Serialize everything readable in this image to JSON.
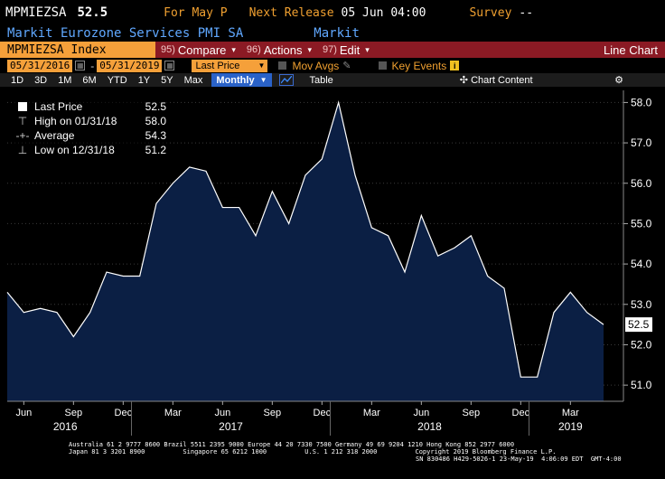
{
  "header": {
    "ticker": "MPMIEZSA",
    "last": "52.5",
    "for_period": "For May P",
    "next_release_label": "Next Release",
    "next_release_value": "05 Jun 04:00",
    "survey_label": "Survey",
    "survey_value": "--",
    "description": "Markit Eurozone Services PMI SA",
    "source": "Markit"
  },
  "toolbar": {
    "index_label": "MPMIEZSA Index",
    "buttons": [
      {
        "num": "95)",
        "label": "Compare",
        "caret": "▾"
      },
      {
        "num": "96)",
        "label": "Actions",
        "caret": "▾"
      },
      {
        "num": "97)",
        "label": "Edit",
        "caret": "▾"
      }
    ],
    "title": "Line Chart"
  },
  "range": {
    "start": "05/31/2016",
    "end": "05/31/2019",
    "dash": "-",
    "field": "Last Price",
    "mov_avgs": "Mov Avgs",
    "key_events": "Key Events",
    "info": "i"
  },
  "periods": {
    "items": [
      "1D",
      "3D",
      "1M",
      "6M",
      "YTD",
      "1Y",
      "5Y",
      "Max"
    ],
    "frequency": "Monthly",
    "table": "Table",
    "chart_content": "Chart Content"
  },
  "legend": [
    {
      "label": "Last Price",
      "value": "52.5"
    },
    {
      "label": "High on 01/31/18",
      "value": "58.0"
    },
    {
      "label": "Average",
      "value": "54.3"
    },
    {
      "label": "Low on 12/31/18",
      "value": "51.2"
    }
  ],
  "colors": {
    "fill": "#0b1f44",
    "line": "#ffffff",
    "orange": "#f5a03a",
    "red": "#8b1a24",
    "blue_text": "#60a8ff"
  },
  "chart_data": {
    "type": "area",
    "x": [
      "2016-05",
      "2016-06",
      "2016-07",
      "2016-08",
      "2016-09",
      "2016-10",
      "2016-11",
      "2016-12",
      "2017-01",
      "2017-02",
      "2017-03",
      "2017-04",
      "2017-05",
      "2017-06",
      "2017-07",
      "2017-08",
      "2017-09",
      "2017-10",
      "2017-11",
      "2017-12",
      "2018-01",
      "2018-02",
      "2018-03",
      "2018-04",
      "2018-05",
      "2018-06",
      "2018-07",
      "2018-08",
      "2018-09",
      "2018-10",
      "2018-11",
      "2018-12",
      "2019-01",
      "2019-02",
      "2019-03",
      "2019-04",
      "2019-05"
    ],
    "values": [
      53.3,
      52.8,
      52.9,
      52.8,
      52.2,
      52.8,
      53.8,
      53.7,
      53.7,
      55.5,
      56.0,
      56.4,
      56.3,
      55.4,
      55.4,
      54.7,
      55.8,
      55.0,
      56.2,
      56.6,
      58.0,
      56.2,
      54.9,
      54.7,
      53.8,
      55.2,
      54.2,
      54.4,
      54.7,
      53.7,
      53.4,
      51.2,
      51.2,
      52.8,
      53.3,
      52.8,
      52.5
    ],
    "ylim": [
      50.6,
      58.3
    ],
    "y_ticks": [
      "58.0",
      "57.0",
      "56.0",
      "55.0",
      "54.0",
      "53.0",
      "52.0",
      "51.0"
    ],
    "last_label": "52.5",
    "month_ticks": [
      "Jun",
      "Sep",
      "Dec",
      "Mar",
      "Jun",
      "Sep",
      "Dec",
      "Mar",
      "Jun",
      "Sep",
      "Dec",
      "Mar"
    ],
    "year_ticks": [
      "2016",
      "2017",
      "2018",
      "2019"
    ],
    "grid": true
  },
  "footer": {
    "line1": "Australia 61 2 9777 8600 Brazil 5511 2395 9000 Europe 44 20 7330 7500 Germany 49 69 9204 1210 Hong Kong 852 2977 6000",
    "line2": "Japan 81 3 3201 8900          Singapore 65 6212 1000          U.S. 1 212 318 2000          Copyright 2019 Bloomberg Finance L.P.",
    "line3": "SN 830486 H429-5026-1 23-May-19  4:06:09 EDT  GMT-4:00"
  }
}
